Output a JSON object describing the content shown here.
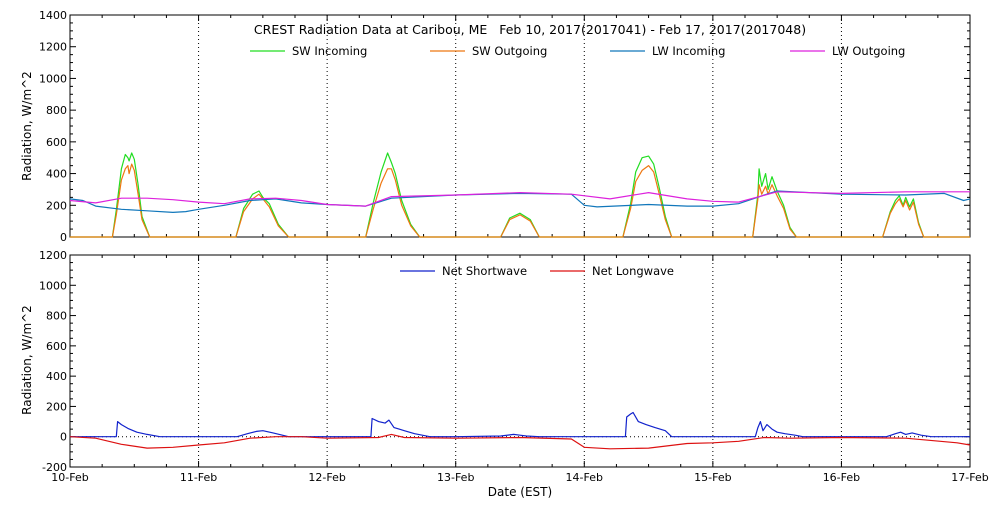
{
  "chart_data": [
    {
      "type": "line",
      "title": "CREST Radiation Data at Caribou, ME   Feb 10, 2017(2017041) - Feb 17, 2017(2017048)",
      "ylabel": "Radiation, W/m^2",
      "xlabel": "",
      "xlim": [
        0,
        7
      ],
      "ylim": [
        0,
        1400
      ],
      "yticks": [
        0,
        200,
        400,
        600,
        800,
        1000,
        1200,
        1400
      ],
      "x_tick_labels": [
        "10-Feb",
        "11-Feb",
        "12-Feb",
        "13-Feb",
        "14-Feb",
        "15-Feb",
        "16-Feb",
        "17-Feb"
      ],
      "grid": "dotted vertical at day boundaries",
      "legend": "top",
      "series": [
        {
          "name": "SW Incoming",
          "color": "#22dd22",
          "x": [
            0,
            0.33,
            0.36,
            0.4,
            0.43,
            0.45,
            0.46,
            0.48,
            0.5,
            0.53,
            0.56,
            0.62,
            1,
            1.29,
            1.35,
            1.42,
            1.47,
            1.5,
            1.55,
            1.62,
            1.7,
            2,
            2.3,
            2.36,
            2.42,
            2.47,
            2.5,
            2.53,
            2.58,
            2.65,
            2.72,
            3,
            3.35,
            3.42,
            3.5,
            3.58,
            3.65,
            4,
            4.3,
            4.36,
            4.4,
            4.45,
            4.5,
            4.54,
            4.58,
            4.63,
            4.68,
            5,
            5.31,
            5.35,
            5.36,
            5.38,
            5.41,
            5.43,
            5.46,
            5.5,
            5.55,
            5.6,
            5.65,
            6,
            6.32,
            6.38,
            6.42,
            6.45,
            6.48,
            6.5,
            6.53,
            6.56,
            6.6,
            6.64,
            7
          ],
          "y": [
            0,
            0,
            170,
            430,
            520,
            500,
            480,
            530,
            490,
            330,
            130,
            0,
            0,
            0,
            180,
            270,
            290,
            250,
            210,
            80,
            0,
            0,
            0,
            220,
            410,
            530,
            470,
            400,
            230,
            80,
            0,
            0,
            0,
            120,
            150,
            110,
            0,
            0,
            0,
            210,
            410,
            500,
            510,
            460,
            320,
            130,
            0,
            0,
            0,
            270,
            430,
            320,
            400,
            300,
            380,
            290,
            200,
            60,
            0,
            0,
            0,
            160,
            230,
            260,
            200,
            250,
            190,
            240,
            90,
            0,
            0
          ]
        },
        {
          "name": "SW Outgoing",
          "color": "#ee7711",
          "x": [
            0,
            0.33,
            0.36,
            0.4,
            0.43,
            0.45,
            0.46,
            0.48,
            0.5,
            0.53,
            0.56,
            0.62,
            1,
            1.29,
            1.35,
            1.42,
            1.47,
            1.5,
            1.55,
            1.62,
            1.7,
            2,
            2.3,
            2.36,
            2.42,
            2.47,
            2.5,
            2.53,
            2.58,
            2.65,
            2.72,
            3,
            3.35,
            3.42,
            3.5,
            3.58,
            3.65,
            4,
            4.3,
            4.36,
            4.4,
            4.45,
            4.5,
            4.54,
            4.58,
            4.63,
            4.68,
            5,
            5.31,
            5.35,
            5.36,
            5.38,
            5.41,
            5.43,
            5.46,
            5.5,
            5.55,
            5.6,
            5.65,
            6,
            6.32,
            6.38,
            6.42,
            6.45,
            6.48,
            6.5,
            6.53,
            6.56,
            6.6,
            6.64,
            7
          ],
          "y": [
            0,
            0,
            140,
            360,
            430,
            450,
            400,
            460,
            420,
            270,
            110,
            0,
            0,
            0,
            160,
            240,
            270,
            240,
            190,
            70,
            0,
            0,
            0,
            180,
            340,
            430,
            430,
            360,
            200,
            70,
            0,
            0,
            0,
            110,
            140,
            100,
            0,
            0,
            0,
            180,
            350,
            420,
            450,
            410,
            280,
            110,
            0,
            0,
            0,
            240,
            330,
            270,
            320,
            270,
            330,
            260,
            180,
            50,
            0,
            0,
            0,
            150,
            210,
            240,
            190,
            230,
            170,
            220,
            80,
            0,
            0
          ]
        },
        {
          "name": "LW Incoming",
          "color": "#1177bb",
          "x": [
            0,
            0.1,
            0.2,
            0.4,
            0.6,
            0.8,
            0.9,
            1.0,
            1.2,
            1.4,
            1.6,
            1.8,
            2.0,
            2.3,
            2.5,
            3.0,
            3.5,
            3.9,
            4.0,
            4.1,
            4.5,
            4.8,
            5.0,
            5.2,
            5.4,
            5.5,
            6.0,
            6.5,
            6.8,
            6.95,
            7.0
          ],
          "y": [
            240,
            230,
            195,
            175,
            165,
            155,
            160,
            175,
            200,
            230,
            240,
            215,
            205,
            195,
            245,
            265,
            275,
            270,
            200,
            190,
            205,
            195,
            195,
            210,
            265,
            290,
            270,
            265,
            275,
            230,
            240
          ]
        },
        {
          "name": "LW Outgoing",
          "color": "#dd22dd",
          "x": [
            0,
            0.2,
            0.4,
            0.6,
            0.8,
            1.0,
            1.2,
            1.4,
            1.6,
            1.8,
            2.0,
            2.3,
            2.5,
            3.0,
            3.5,
            3.9,
            4.2,
            4.5,
            4.8,
            5.0,
            5.2,
            5.5,
            6.0,
            6.5,
            7.0
          ],
          "y": [
            230,
            215,
            245,
            245,
            235,
            220,
            210,
            240,
            245,
            230,
            205,
            195,
            255,
            265,
            280,
            270,
            240,
            280,
            240,
            225,
            220,
            285,
            275,
            285,
            285
          ]
        }
      ]
    },
    {
      "type": "line",
      "ylabel": "Radiation, W/m^2",
      "xlabel": "Date (EST)",
      "xlim": [
        0,
        7
      ],
      "ylim": [
        -200,
        1200
      ],
      "yticks": [
        -200,
        0,
        200,
        400,
        600,
        800,
        1000,
        1200
      ],
      "x_tick_labels": [
        "10-Feb",
        "11-Feb",
        "12-Feb",
        "13-Feb",
        "14-Feb",
        "15-Feb",
        "16-Feb",
        "17-Feb"
      ],
      "grid": "dotted vertical at day boundaries",
      "legend": "top",
      "series": [
        {
          "name": "Net Shortwave",
          "color": "#1122cc",
          "x": [
            0,
            0.36,
            0.37,
            0.4,
            0.45,
            0.52,
            0.6,
            0.7,
            1.0,
            1.3,
            1.38,
            1.45,
            1.5,
            1.58,
            1.7,
            2.0,
            2.34,
            2.35,
            2.4,
            2.45,
            2.48,
            2.52,
            2.56,
            2.6,
            2.68,
            2.8,
            3.0,
            3.35,
            3.45,
            3.5,
            3.55,
            3.65,
            4.0,
            4.32,
            4.33,
            4.36,
            4.38,
            4.42,
            4.48,
            4.55,
            4.63,
            4.68,
            5.0,
            5.33,
            5.35,
            5.37,
            5.39,
            5.42,
            5.46,
            5.5,
            5.56,
            5.64,
            5.7,
            6.0,
            6.35,
            6.42,
            6.46,
            6.5,
            6.55,
            6.62,
            6.7,
            7.0
          ],
          "y": [
            0,
            0,
            100,
            80,
            55,
            30,
            15,
            0,
            0,
            0,
            20,
            35,
            40,
            25,
            0,
            0,
            0,
            120,
            100,
            90,
            110,
            60,
            50,
            40,
            20,
            0,
            0,
            5,
            15,
            10,
            5,
            0,
            0,
            0,
            130,
            150,
            160,
            100,
            80,
            60,
            40,
            0,
            0,
            0,
            60,
            100,
            40,
            80,
            50,
            30,
            20,
            10,
            0,
            0,
            0,
            20,
            30,
            15,
            25,
            10,
            0,
            0
          ]
        },
        {
          "name": "Net Longwave",
          "color": "#dd1111",
          "x": [
            0,
            0.2,
            0.4,
            0.6,
            0.8,
            1.0,
            1.2,
            1.4,
            1.6,
            1.8,
            2.0,
            2.4,
            2.5,
            2.6,
            3.0,
            3.5,
            3.9,
            4.0,
            4.2,
            4.5,
            4.8,
            5.0,
            5.2,
            5.4,
            5.6,
            6.0,
            6.5,
            6.9,
            7.0
          ],
          "y": [
            0,
            -10,
            -50,
            -75,
            -70,
            -55,
            -40,
            -10,
            0,
            0,
            -10,
            -5,
            15,
            -5,
            -10,
            -5,
            -15,
            -70,
            -80,
            -75,
            -45,
            -40,
            -30,
            -5,
            -10,
            -5,
            -10,
            -40,
            -55
          ]
        }
      ]
    }
  ]
}
